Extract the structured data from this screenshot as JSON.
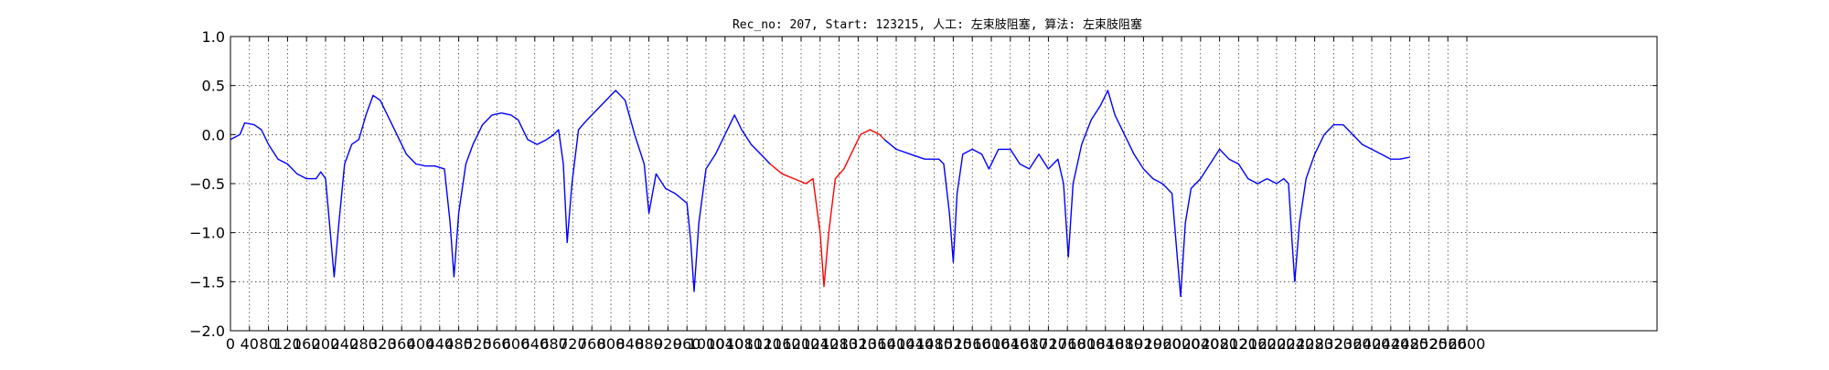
{
  "chart_data": {
    "type": "line",
    "title": "Rec_no: 207, Start: 123215, 人工: 左束肢阻塞, 算法: 左束肢阻塞",
    "xlabel": "",
    "ylabel": "",
    "xlim": [
      0,
      3000
    ],
    "ylim": [
      -2.0,
      1.0
    ],
    "xticks": [
      0,
      40,
      80,
      120,
      160,
      200,
      240,
      280,
      320,
      360,
      400,
      440,
      480,
      520,
      560,
      600,
      640,
      680,
      720,
      760,
      800,
      840,
      880,
      920,
      960,
      1000,
      1040,
      1080,
      1120,
      1160,
      1200,
      1240,
      1280,
      1320,
      1360,
      1400,
      1440,
      1480,
      1520,
      1560,
      1600,
      1640,
      1680,
      1720,
      1760,
      1800,
      1840,
      1880,
      1920,
      1960,
      2000,
      2040,
      2080,
      2120,
      2160,
      2200,
      2240,
      2280,
      2320,
      2360,
      2400,
      2440,
      2480,
      2520,
      2560,
      2600
    ],
    "xtick_labels": [
      "0",
      "40",
      "80",
      "120",
      "160",
      "200",
      "240",
      "280",
      "320",
      "360",
      "400",
      "440",
      "480",
      "520",
      "560",
      "600",
      "640",
      "680",
      "720",
      "760",
      "800",
      "840",
      "880",
      "920",
      "960",
      "1000",
      "1040",
      "1080",
      "1120",
      "1160",
      "1200",
      "1240",
      "1280",
      "1320",
      "1360",
      "1400",
      "1440",
      "1480",
      "1520",
      "1560",
      "1600",
      "1640",
      "1680",
      "1720",
      "1760",
      "1800",
      "1840",
      "1880",
      "1920",
      "1960",
      "2000",
      "2040",
      "2080",
      "2120",
      "2160",
      "2200",
      "2240",
      "2280",
      "2320",
      "2360",
      "2400",
      "2440",
      "2480",
      "2520",
      "2560",
      "2600"
    ],
    "yticks": [
      1.0,
      0.5,
      0.0,
      -0.5,
      -1.0,
      -1.5,
      -2.0
    ],
    "ytick_labels": [
      "1.0",
      "0.5",
      "0.0",
      "−0.5",
      "−1.0",
      "−1.5",
      "−2.0"
    ],
    "grid": true,
    "series": [
      {
        "color": "#0000ff",
        "points": [
          [
            0,
            -0.05
          ],
          [
            20,
            0.0
          ],
          [
            30,
            0.12
          ],
          [
            50,
            0.1
          ],
          [
            65,
            0.05
          ],
          [
            80,
            -0.1
          ],
          [
            100,
            -0.25
          ],
          [
            120,
            -0.3
          ],
          [
            140,
            -0.4
          ],
          [
            160,
            -0.45
          ],
          [
            180,
            -0.45
          ],
          [
            190,
            -0.38
          ],
          [
            200,
            -0.45
          ],
          [
            210,
            -1.0
          ],
          [
            218,
            -1.45
          ],
          [
            228,
            -0.9
          ],
          [
            240,
            -0.3
          ],
          [
            255,
            -0.1
          ],
          [
            270,
            -0.05
          ],
          [
            285,
            0.2
          ],
          [
            300,
            0.4
          ],
          [
            315,
            0.35
          ],
          [
            330,
            0.2
          ],
          [
            350,
            0.0
          ],
          [
            370,
            -0.2
          ],
          [
            390,
            -0.3
          ],
          [
            410,
            -0.32
          ],
          [
            430,
            -0.32
          ],
          [
            450,
            -0.35
          ],
          [
            462,
            -0.9
          ],
          [
            470,
            -1.45
          ],
          [
            480,
            -0.8
          ],
          [
            495,
            -0.3
          ],
          [
            510,
            -0.1
          ],
          [
            530,
            0.1
          ],
          [
            550,
            0.2
          ],
          [
            570,
            0.22
          ],
          [
            590,
            0.2
          ],
          [
            605,
            0.15
          ],
          [
            625,
            -0.05
          ],
          [
            645,
            -0.1
          ],
          [
            665,
            -0.05
          ],
          [
            680,
            0.0
          ],
          [
            690,
            0.05
          ],
          [
            700,
            -0.3
          ],
          [
            708,
            -1.1
          ],
          [
            718,
            -0.5
          ],
          [
            732,
            0.05
          ],
          [
            750,
            0.15
          ],
          [
            770,
            0.25
          ],
          [
            790,
            0.35
          ],
          [
            810,
            0.45
          ],
          [
            830,
            0.35
          ],
          [
            850,
            0.0
          ],
          [
            870,
            -0.3
          ],
          [
            880,
            -0.8
          ],
          [
            895,
            -0.4
          ],
          [
            915,
            -0.55
          ],
          [
            935,
            -0.6
          ],
          [
            960,
            -0.7
          ],
          [
            968,
            -1.1
          ],
          [
            975,
            -1.6
          ],
          [
            985,
            -0.9
          ],
          [
            1000,
            -0.35
          ],
          [
            1020,
            -0.2
          ],
          [
            1040,
            0.0
          ],
          [
            1060,
            0.2
          ],
          [
            1075,
            0.05
          ],
          [
            1095,
            -0.1
          ],
          [
            1115,
            -0.2
          ],
          [
            1135,
            -0.3
          ]
        ]
      },
      {
        "color": "#ff0000",
        "points": [
          [
            1135,
            -0.3
          ],
          [
            1160,
            -0.4
          ],
          [
            1185,
            -0.45
          ],
          [
            1210,
            -0.5
          ],
          [
            1225,
            -0.45
          ],
          [
            1240,
            -1.0
          ],
          [
            1248,
            -1.55
          ],
          [
            1258,
            -1.0
          ],
          [
            1272,
            -0.45
          ],
          [
            1290,
            -0.35
          ],
          [
            1305,
            -0.2
          ],
          [
            1325,
            0.0
          ],
          [
            1345,
            0.05
          ],
          [
            1365,
            0.0
          ],
          [
            1375,
            -0.05
          ]
        ]
      },
      {
        "color": "#0000ff",
        "points": [
          [
            1375,
            -0.05
          ],
          [
            1400,
            -0.15
          ],
          [
            1430,
            -0.2
          ],
          [
            1460,
            -0.25
          ],
          [
            1490,
            -0.25
          ],
          [
            1500,
            -0.3
          ],
          [
            1512,
            -0.8
          ],
          [
            1520,
            -1.3
          ],
          [
            1528,
            -0.6
          ],
          [
            1540,
            -0.2
          ],
          [
            1560,
            -0.15
          ],
          [
            1580,
            -0.2
          ],
          [
            1595,
            -0.35
          ],
          [
            1615,
            -0.15
          ],
          [
            1640,
            -0.15
          ],
          [
            1660,
            -0.3
          ],
          [
            1680,
            -0.35
          ],
          [
            1700,
            -0.2
          ],
          [
            1720,
            -0.35
          ],
          [
            1740,
            -0.25
          ],
          [
            1752,
            -0.5
          ],
          [
            1762,
            -1.25
          ],
          [
            1772,
            -0.5
          ],
          [
            1790,
            -0.1
          ],
          [
            1810,
            0.15
          ],
          [
            1830,
            0.3
          ],
          [
            1845,
            0.45
          ],
          [
            1860,
            0.2
          ],
          [
            1880,
            0.0
          ],
          [
            1900,
            -0.2
          ],
          [
            1920,
            -0.35
          ],
          [
            1940,
            -0.45
          ],
          [
            1960,
            -0.5
          ],
          [
            1980,
            -0.6
          ],
          [
            1992,
            -1.3
          ],
          [
            1998,
            -1.65
          ],
          [
            2008,
            -0.9
          ],
          [
            2020,
            -0.55
          ],
          [
            2040,
            -0.45
          ],
          [
            2060,
            -0.3
          ],
          [
            2080,
            -0.15
          ],
          [
            2100,
            -0.25
          ],
          [
            2120,
            -0.3
          ],
          [
            2140,
            -0.45
          ],
          [
            2160,
            -0.5
          ],
          [
            2180,
            -0.45
          ],
          [
            2200,
            -0.5
          ],
          [
            2215,
            -0.45
          ],
          [
            2225,
            -0.5
          ],
          [
            2232,
            -1.05
          ],
          [
            2238,
            -1.5
          ],
          [
            2248,
            -0.9
          ],
          [
            2262,
            -0.45
          ],
          [
            2280,
            -0.2
          ],
          [
            2300,
            0.0
          ],
          [
            2320,
            0.1
          ],
          [
            2340,
            0.1
          ],
          [
            2360,
            0.0
          ],
          [
            2380,
            -0.1
          ],
          [
            2400,
            -0.15
          ],
          [
            2420,
            -0.2
          ],
          [
            2440,
            -0.25
          ],
          [
            2460,
            -0.25
          ],
          [
            2480,
            -0.23
          ]
        ]
      }
    ]
  }
}
